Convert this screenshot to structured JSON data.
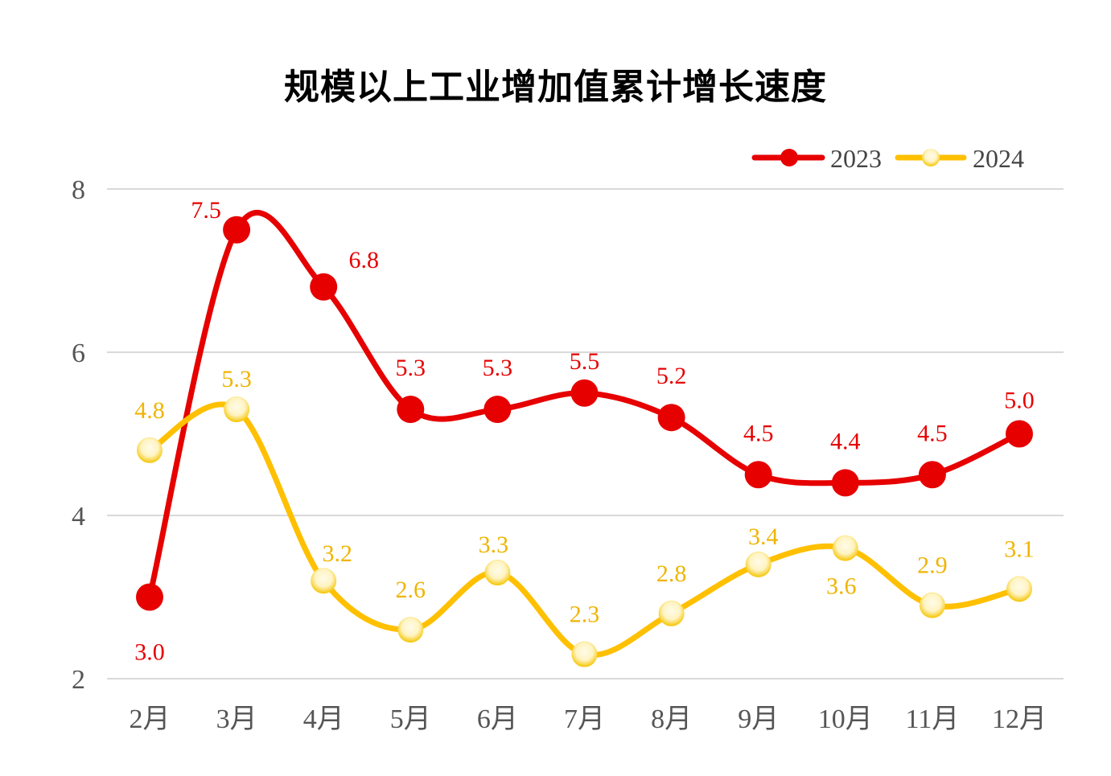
{
  "chart_data": {
    "type": "line",
    "title": "规模以上工业增加值累计增长速度",
    "categories": [
      "2月",
      "3月",
      "4月",
      "5月",
      "6月",
      "7月",
      "8月",
      "9月",
      "10月",
      "11月",
      "12月"
    ],
    "series": [
      {
        "name": "2023",
        "color": "#e60000",
        "values": [
          3.0,
          7.5,
          6.8,
          5.3,
          5.3,
          5.5,
          5.2,
          4.5,
          4.4,
          4.5,
          5.0
        ],
        "labels": [
          "3.0",
          "7.5",
          "6.8",
          "5.3",
          "5.3",
          "5.5",
          "5.2",
          "4.5",
          "4.4",
          "4.5",
          "5.0"
        ]
      },
      {
        "name": "2024",
        "color": "#ffc000",
        "values": [
          4.8,
          5.3,
          3.2,
          2.6,
          3.3,
          2.3,
          2.8,
          3.4,
          3.6,
          2.9,
          3.1
        ],
        "labels": [
          "4.8",
          "5.3",
          "3.2",
          "2.6",
          "3.3",
          "2.3",
          "2.8",
          "3.4",
          "3.6",
          "2.9",
          "3.1"
        ]
      }
    ],
    "ylim": [
      2,
      8
    ],
    "yticks": [
      "2",
      "4",
      "6",
      "8"
    ],
    "grid": true,
    "smooth": true,
    "legend": "top-right"
  }
}
